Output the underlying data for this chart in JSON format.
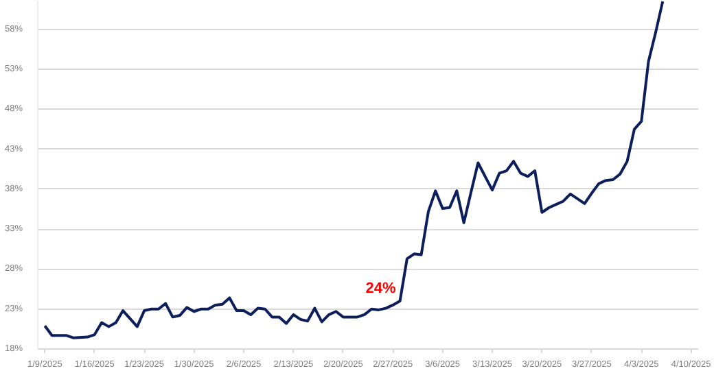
{
  "chart_data": {
    "type": "line",
    "x": [
      "2025-01-09",
      "2025-01-10",
      "2025-01-12",
      "2025-01-13",
      "2025-01-15",
      "2025-01-16",
      "2025-01-17",
      "2025-01-18",
      "2025-01-19",
      "2025-01-20",
      "2025-01-22",
      "2025-01-23",
      "2025-01-24",
      "2025-01-25",
      "2025-01-26",
      "2025-01-27",
      "2025-01-28",
      "2025-01-29",
      "2025-01-30",
      "2025-01-31",
      "2025-02-01",
      "2025-02-02",
      "2025-02-03",
      "2025-02-04",
      "2025-02-05",
      "2025-02-06",
      "2025-02-07",
      "2025-02-08",
      "2025-02-09",
      "2025-02-10",
      "2025-02-11",
      "2025-02-12",
      "2025-02-13",
      "2025-02-14",
      "2025-02-15",
      "2025-02-16",
      "2025-02-17",
      "2025-02-18",
      "2025-02-19",
      "2025-02-20",
      "2025-02-22",
      "2025-02-23",
      "2025-02-24",
      "2025-02-25",
      "2025-02-26",
      "2025-02-27",
      "2025-02-28",
      "2025-03-01",
      "2025-03-02",
      "2025-03-03",
      "2025-03-04",
      "2025-03-05",
      "2025-03-06",
      "2025-03-07",
      "2025-03-08",
      "2025-03-09",
      "2025-03-10",
      "2025-03-11",
      "2025-03-12",
      "2025-03-13",
      "2025-03-14",
      "2025-03-15",
      "2025-03-16",
      "2025-03-17",
      "2025-03-18",
      "2025-03-19",
      "2025-03-20",
      "2025-03-21",
      "2025-03-22",
      "2025-03-23",
      "2025-03-24",
      "2025-03-25",
      "2025-03-26",
      "2025-03-27",
      "2025-03-28",
      "2025-03-29",
      "2025-03-30",
      "2025-03-31",
      "2025-04-01",
      "2025-04-02",
      "2025-04-03",
      "2025-04-04",
      "2025-04-05",
      "2025-04-06"
    ],
    "series": [
      {
        "color": "#0c1e5b",
        "values": [
          20.9,
          19.7,
          19.7,
          19.4,
          19.5,
          19.8,
          21.3,
          20.8,
          21.3,
          22.8,
          20.8,
          22.8,
          23.0,
          23.0,
          23.7,
          22.0,
          22.2,
          23.2,
          22.7,
          23.0,
          23.0,
          23.5,
          23.6,
          24.4,
          22.8,
          22.8,
          22.3,
          23.1,
          23.0,
          22.0,
          22.0,
          21.2,
          22.3,
          21.7,
          21.5,
          23.1,
          21.4,
          22.3,
          22.7,
          22.0,
          22.0,
          22.3,
          23.0,
          22.9,
          23.1,
          23.5,
          24,
          29.3,
          29.9,
          29.8,
          35.2,
          37.8,
          35.6,
          35.7,
          37.8,
          33.8,
          37.6,
          41.3,
          39.6,
          37.9,
          40.0,
          40.3,
          41.5,
          40.0,
          39.6,
          40.3,
          35.1,
          35.7,
          36.1,
          36.5,
          37.4,
          36.8,
          36.2,
          37.5,
          38.7,
          39.1,
          39.2,
          39.9,
          41.5,
          45.5,
          46.5,
          54.0,
          57.6,
          61.5
        ]
      }
    ],
    "xlim": [
      "2025-01-08",
      "2025-04-11"
    ],
    "xticks": [
      {
        "value": "2025-01-09",
        "label": "1/9/2025"
      },
      {
        "value": "2025-01-16",
        "label": "1/16/2025"
      },
      {
        "value": "2025-01-23",
        "label": "1/23/2025"
      },
      {
        "value": "2025-01-30",
        "label": "1/30/2025"
      },
      {
        "value": "2025-02-06",
        "label": "2/6/2025"
      },
      {
        "value": "2025-02-13",
        "label": "2/13/2025"
      },
      {
        "value": "2025-02-20",
        "label": "2/20/2025"
      },
      {
        "value": "2025-02-27",
        "label": "2/27/2025"
      },
      {
        "value": "2025-03-06",
        "label": "3/6/2025"
      },
      {
        "value": "2025-03-13",
        "label": "3/13/2025"
      },
      {
        "value": "2025-03-20",
        "label": "3/20/2025"
      },
      {
        "value": "2025-03-27",
        "label": "3/27/2025"
      },
      {
        "value": "2025-04-03",
        "label": "4/3/2025"
      },
      {
        "value": "2025-04-10",
        "label": "4/10/2025"
      }
    ],
    "ylim": [
      18,
      61.6
    ],
    "yticks": [
      {
        "value": 18,
        "label": "18%"
      },
      {
        "value": 23,
        "label": "23%"
      },
      {
        "value": 28,
        "label": "28%"
      },
      {
        "value": 33,
        "label": "33%"
      },
      {
        "value": 38,
        "label": "38%"
      },
      {
        "value": 43,
        "label": "43%"
      },
      {
        "value": 48,
        "label": "48%"
      },
      {
        "value": 53,
        "label": "53%"
      },
      {
        "value": 58,
        "label": "58%"
      }
    ],
    "grid": "y",
    "annotations": [
      {
        "text": "24%",
        "x": "2025-02-28",
        "y": 24
      }
    ]
  }
}
